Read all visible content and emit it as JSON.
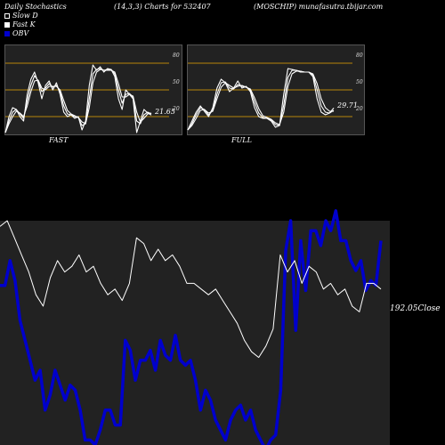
{
  "header": {
    "title": "Daily Stochastics",
    "params": "(14,3,3) Charts for 532407",
    "symbol_site": "(MOSCHIP) munafasutra.tbijar.com"
  },
  "legend": {
    "slow_d": "Slow  D",
    "fast_k": "Fast K",
    "obv": "OBV"
  },
  "colors": {
    "background": "#000000",
    "panel": "#222222",
    "level_line": "#b8860b",
    "stoch_line": "#ffffff",
    "obv_line": "#0000cc",
    "close_line": "#ffffff"
  },
  "chart_data": [
    {
      "type": "line",
      "title": "FAST",
      "ylim": [
        0,
        100
      ],
      "levels": [
        20,
        50,
        80
      ],
      "level_labels": [
        "20",
        "50",
        "80"
      ],
      "last_value_label": "21.65",
      "series": [
        {
          "values": [
            2,
            20,
            30,
            28,
            20,
            15,
            45,
            62,
            70,
            58,
            40,
            55,
            60,
            50,
            58,
            45,
            25,
            20,
            22,
            18,
            20,
            5,
            15,
            55,
            78,
            72,
            76,
            70,
            74,
            73,
            65,
            40,
            28,
            50,
            45,
            40,
            2,
            15,
            28,
            24,
            21.65
          ]
        },
        {
          "values": [
            2,
            15,
            25,
            28,
            23,
            18,
            38,
            55,
            66,
            60,
            48,
            52,
            57,
            53,
            55,
            48,
            32,
            23,
            22,
            20,
            19,
            10,
            12,
            40,
            68,
            73,
            74,
            72,
            73,
            73,
            68,
            50,
            35,
            45,
            46,
            42,
            15,
            12,
            22,
            25,
            23
          ]
        },
        {
          "values": [
            2,
            12,
            20,
            26,
            24,
            20,
            32,
            48,
            60,
            61,
            52,
            50,
            54,
            54,
            54,
            50,
            38,
            27,
            23,
            21,
            19,
            14,
            12,
            30,
            58,
            70,
            73,
            72,
            72,
            72,
            70,
            57,
            42,
            42,
            45,
            43,
            25,
            14,
            18,
            23,
            24
          ]
        }
      ]
    },
    {
      "type": "line",
      "title": "FULL",
      "ylim": [
        0,
        100
      ],
      "levels": [
        20,
        50,
        80
      ],
      "level_labels": [
        "20",
        "50",
        "80"
      ],
      "last_value_label": "29.71",
      "series": [
        {
          "values": [
            5,
            15,
            25,
            32,
            26,
            20,
            30,
            52,
            62,
            58,
            48,
            52,
            60,
            52,
            54,
            48,
            30,
            20,
            18,
            18,
            15,
            8,
            10,
            45,
            74,
            73,
            72,
            70,
            70,
            70,
            65,
            40,
            25,
            22,
            24,
            29.71
          ]
        },
        {
          "values": [
            5,
            12,
            22,
            30,
            28,
            22,
            27,
            45,
            58,
            59,
            52,
            51,
            56,
            54,
            53,
            50,
            36,
            24,
            19,
            18,
            16,
            11,
            10,
            33,
            64,
            72,
            72,
            71,
            70,
            70,
            67,
            50,
            32,
            25,
            24,
            27
          ]
        },
        {
          "values": [
            5,
            10,
            18,
            27,
            28,
            24,
            26,
            40,
            53,
            58,
            55,
            52,
            54,
            55,
            53,
            51,
            41,
            29,
            21,
            19,
            17,
            13,
            11,
            25,
            54,
            68,
            71,
            71,
            70,
            70,
            68,
            57,
            40,
            30,
            26,
            26
          ]
        }
      ]
    },
    {
      "type": "line",
      "title": "",
      "series": [
        {
          "name": "OBV",
          "values": [
            345,
            345,
            320,
            340,
            380,
            400,
            420,
            440,
            430,
            470,
            455,
            430,
            445,
            460,
            445,
            450,
            470,
            500,
            500,
            505,
            490,
            470,
            470,
            485,
            485,
            400,
            410,
            440,
            420,
            420,
            410,
            430,
            400,
            415,
            420,
            395,
            420,
            425,
            420,
            440,
            470,
            450,
            460,
            480,
            490,
            500,
            480,
            470,
            465,
            480,
            470,
            490,
            500,
            510,
            500,
            495,
            450,
            310,
            280,
            390,
            300,
            350,
            290,
            290,
            305,
            280,
            290,
            270,
            300,
            300,
            320,
            330,
            320,
            350,
            340,
            345,
            300
          ]
        },
        {
          "name": "Close",
          "values": [
            290,
            285,
            300,
            315,
            330,
            350,
            360,
            335,
            320,
            330,
            325,
            315,
            330,
            325,
            340,
            350,
            345,
            355,
            340,
            300,
            305,
            320,
            310,
            320,
            315,
            325,
            340,
            340,
            345,
            350,
            345,
            355,
            365,
            375,
            390,
            400,
            405,
            395,
            380,
            315,
            330,
            320,
            340,
            325,
            330,
            345,
            340,
            350,
            345,
            360,
            365,
            340,
            340,
            345
          ]
        }
      ],
      "last_value_label": "192.05Close"
    }
  ]
}
